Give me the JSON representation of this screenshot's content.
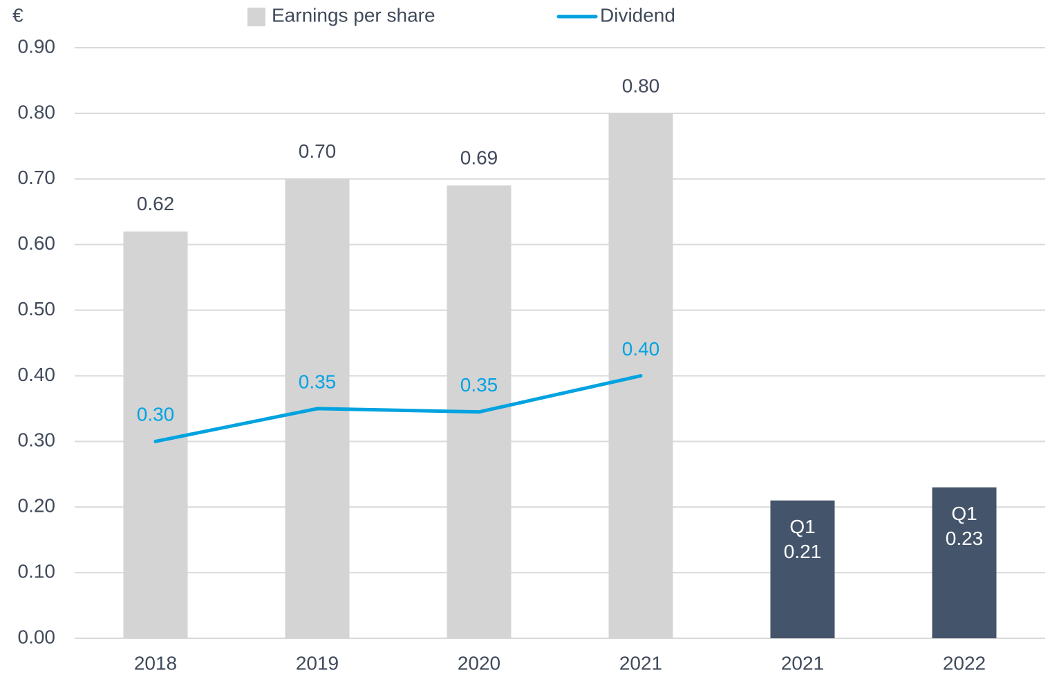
{
  "chart_data": {
    "type": "bar",
    "y_label": "€",
    "categories": [
      "2018",
      "2019",
      "2020",
      "2021",
      "2021",
      "2022"
    ],
    "series": [
      {
        "name": "Earnings per share",
        "type": "bar",
        "color": "#d4d4d4",
        "colors": [
          "#d4d4d4",
          "#d4d4d4",
          "#d4d4d4",
          "#d4d4d4",
          "#44546a",
          "#44546a"
        ],
        "values": [
          0.62,
          0.7,
          0.69,
          0.8,
          0.21,
          0.23
        ],
        "value_labels": [
          "0.62",
          "0.70",
          "0.69",
          "0.80",
          "0.21",
          "0.23"
        ],
        "inner_labels": [
          null,
          null,
          null,
          null,
          "Q1",
          "Q1"
        ]
      },
      {
        "name": "Dividend",
        "type": "line",
        "color": "#00a3e0",
        "values": [
          0.3,
          0.35,
          0.345,
          0.4,
          null,
          null
        ],
        "value_labels": [
          "0.30",
          "0.35",
          "0.35",
          "0.40",
          null,
          null
        ]
      }
    ],
    "ylim": [
      0,
      0.9
    ],
    "yticks": [
      {
        "value": 0,
        "label": "0.00"
      },
      {
        "value": 0.1,
        "label": "0.10"
      },
      {
        "value": 0.2,
        "label": "0.20"
      },
      {
        "value": 0.3,
        "label": "0.30"
      },
      {
        "value": 0.4,
        "label": "0.40"
      },
      {
        "value": 0.5,
        "label": "0.50"
      },
      {
        "value": 0.6,
        "label": "0.60"
      },
      {
        "value": 0.7,
        "label": "0.70"
      },
      {
        "value": 0.8,
        "label": "0.80"
      },
      {
        "value": 0.9,
        "label": "0.90"
      }
    ],
    "grid": true
  }
}
